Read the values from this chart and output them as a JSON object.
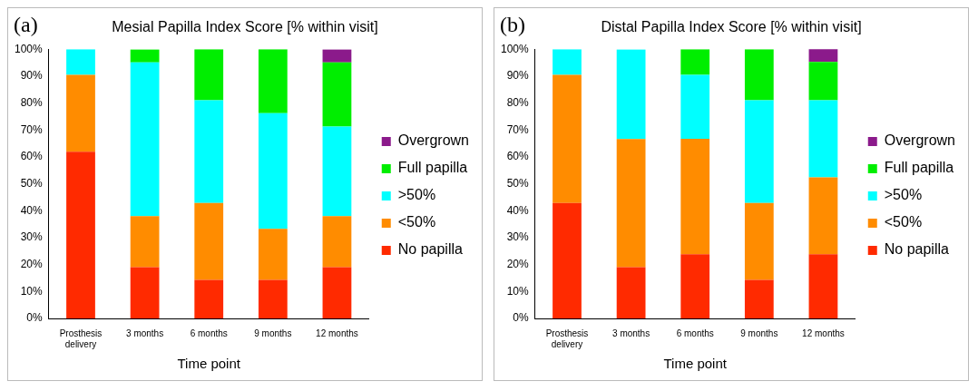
{
  "chart_data": [
    {
      "type": "bar",
      "stacked": true,
      "annotations": [
        "(a)"
      ],
      "title": "Mesial Papilla Index Score [% within visit]",
      "xlabel": "Time point",
      "categories": [
        "Prosthesis delivery",
        "3 months",
        "6 months",
        "9 months",
        "12 months"
      ],
      "ylim": [
        0,
        100
      ],
      "yticks": [
        {
          "value": 0,
          "label": "0%"
        },
        {
          "value": 10,
          "label": "10%"
        },
        {
          "value": 20,
          "label": "20%"
        },
        {
          "value": 30,
          "label": "30%"
        },
        {
          "value": 40,
          "label": "40%"
        },
        {
          "value": 50,
          "label": "50%"
        },
        {
          "value": 60,
          "label": "60%"
        },
        {
          "value": 70,
          "label": "70%"
        },
        {
          "value": 80,
          "label": "80%"
        },
        {
          "value": 90,
          "label": "90%"
        },
        {
          "value": 100,
          "label": "100%"
        }
      ],
      "grid": false,
      "legend": "right",
      "series": [
        {
          "name": "No papilla",
          "color": "#ff2a00",
          "values": [
            61.9,
            19.0,
            14.3,
            14.3,
            19.0
          ]
        },
        {
          "name": "<50%",
          "color": "#ff8c00",
          "values": [
            28.6,
            19.0,
            28.6,
            19.0,
            19.0
          ]
        },
        {
          "name": ">50%",
          "color": "#00ffff",
          "values": [
            9.5,
            57.1,
            38.1,
            42.9,
            33.3
          ]
        },
        {
          "name": "Full papilla",
          "color": "#00ee00",
          "values": [
            0,
            4.8,
            19.0,
            23.8,
            23.8
          ]
        },
        {
          "name": "Overgrown",
          "color": "#8b1a8b",
          "values": [
            0,
            0,
            0,
            0,
            4.8
          ]
        }
      ]
    },
    {
      "type": "bar",
      "stacked": true,
      "annotations": [
        "(b)"
      ],
      "title": "Distal Papilla Index Score [% within visit]",
      "xlabel": "Time point",
      "categories": [
        "Prosthesis delivery",
        "3 months",
        "6 months",
        "9 months",
        "12 months"
      ],
      "ylim": [
        0,
        100
      ],
      "yticks": [
        {
          "value": 0,
          "label": "0%"
        },
        {
          "value": 10,
          "label": "10%"
        },
        {
          "value": 20,
          "label": "20%"
        },
        {
          "value": 30,
          "label": "30%"
        },
        {
          "value": 40,
          "label": "40%"
        },
        {
          "value": 50,
          "label": "50%"
        },
        {
          "value": 60,
          "label": "60%"
        },
        {
          "value": 70,
          "label": "70%"
        },
        {
          "value": 80,
          "label": "80%"
        },
        {
          "value": 90,
          "label": "90%"
        },
        {
          "value": 100,
          "label": "100%"
        }
      ],
      "grid": false,
      "legend": "right",
      "series": [
        {
          "name": "No papilla",
          "color": "#ff2a00",
          "values": [
            42.9,
            19.0,
            23.8,
            14.3,
            23.8
          ]
        },
        {
          "name": "<50%",
          "color": "#ff8c00",
          "values": [
            47.6,
            47.6,
            42.9,
            28.6,
            28.6
          ]
        },
        {
          "name": ">50%",
          "color": "#00ffff",
          "values": [
            9.5,
            33.3,
            23.8,
            38.1,
            28.6
          ]
        },
        {
          "name": "Full papilla",
          "color": "#00ee00",
          "values": [
            0,
            0,
            9.5,
            19.0,
            14.3
          ]
        },
        {
          "name": "Overgrown",
          "color": "#8b1a8b",
          "values": [
            0,
            0,
            0,
            0,
            4.8
          ]
        }
      ]
    }
  ]
}
